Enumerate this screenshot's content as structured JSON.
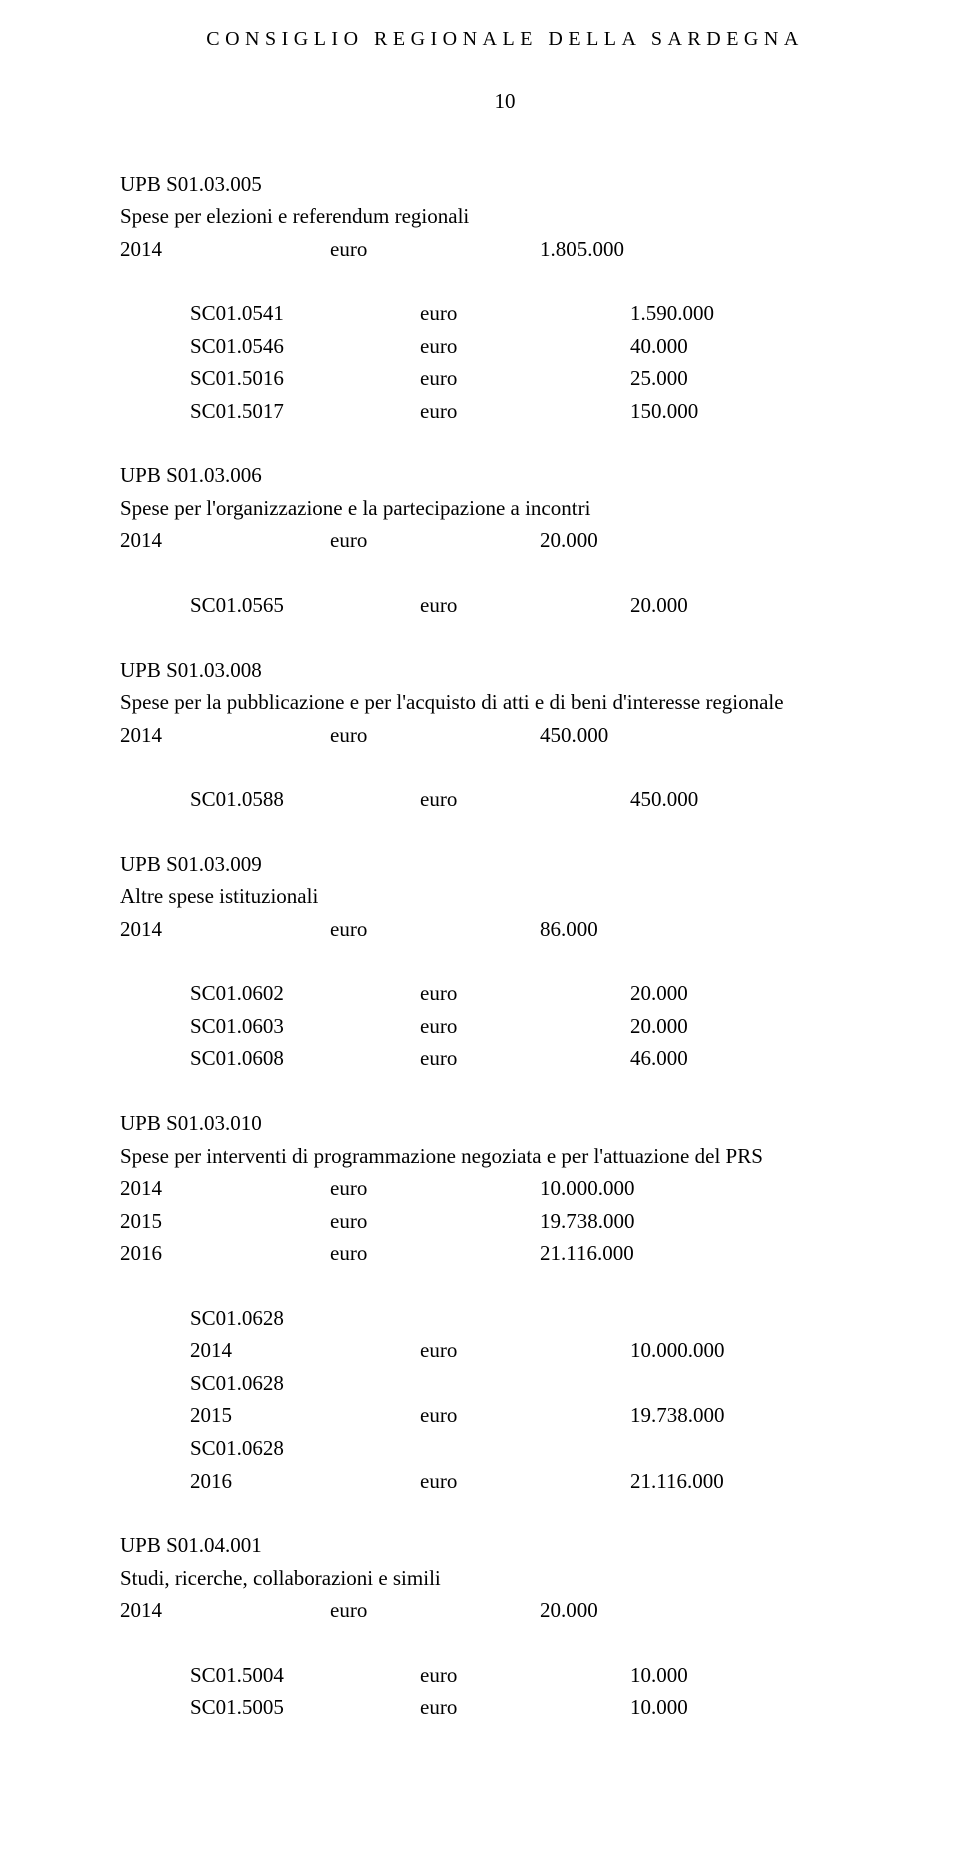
{
  "header": "CONSIGLIO REGIONALE DELLA SARDEGNA",
  "page_number": "10",
  "euro_label": "euro",
  "blocks": [
    {
      "code": "UPB S01.03.005",
      "title": "Spese per elezioni e referendum regionali",
      "totals": [
        {
          "year": "2014",
          "value": "1.805.000"
        }
      ],
      "subs": [
        {
          "code": "SC01.0541",
          "value": "1.590.000"
        },
        {
          "code": "SC01.0546",
          "value": "40.000"
        },
        {
          "code": "SC01.5016",
          "value": "25.000"
        },
        {
          "code": "SC01.5017",
          "value": "150.000"
        }
      ]
    },
    {
      "code": "UPB S01.03.006",
      "title": "Spese per l'organizzazione e la partecipazione a incontri",
      "totals": [
        {
          "year": "2014",
          "value": "20.000"
        }
      ],
      "subs": [
        {
          "code": "SC01.0565",
          "value": "20.000"
        }
      ]
    },
    {
      "code": "UPB S01.03.008",
      "title": "Spese per la pubblicazione e per l'acquisto di atti e di beni d'interesse regionale",
      "totals": [
        {
          "year": "2014",
          "value": "450.000"
        }
      ],
      "subs": [
        {
          "code": "SC01.0588",
          "value": "450.000"
        }
      ]
    },
    {
      "code": "UPB S01.03.009",
      "title": "Altre spese istituzionali",
      "totals": [
        {
          "year": "2014",
          "value": "86.000"
        }
      ],
      "subs": [
        {
          "code": "SC01.0602",
          "value": "20.000"
        },
        {
          "code": "SC01.0603",
          "value": "20.000"
        },
        {
          "code": "SC01.0608",
          "value": "46.000"
        }
      ]
    },
    {
      "code": "UPB S01.03.010",
      "title": "Spese per interventi di programmazione negoziata e per l'attuazione del PRS",
      "totals": [
        {
          "year": "2014",
          "value": "10.000.000"
        },
        {
          "year": "2015",
          "value": "19.738.000"
        },
        {
          "year": "2016",
          "value": "21.116.000"
        }
      ],
      "subs_multi": [
        {
          "code": "SC01.0628",
          "year": "2014",
          "value": "10.000.000"
        },
        {
          "code": "SC01.0628",
          "year": "2015",
          "value": "19.738.000"
        },
        {
          "code": "SC01.0628",
          "year": "2016",
          "value": "21.116.000"
        }
      ]
    },
    {
      "code": "UPB S01.04.001",
      "title": "Studi, ricerche, collaborazioni e simili",
      "totals": [
        {
          "year": "2014",
          "value": "20.000"
        }
      ],
      "subs": [
        {
          "code": "SC01.5004",
          "value": "10.000"
        },
        {
          "code": "SC01.5005",
          "value": "10.000"
        }
      ]
    }
  ]
}
